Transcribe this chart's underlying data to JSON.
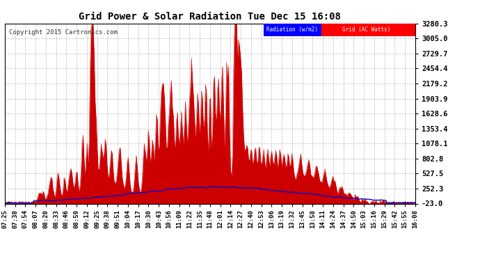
{
  "title": "Grid Power & Solar Radiation Tue Dec 15 16:08",
  "copyright": "Copyright 2015 Cartronics.com",
  "bg_color": "#ffffff",
  "plot_bg_color": "#ffffff",
  "grid_color": "#bbbbbb",
  "radiation_color": "#0000cc",
  "grid_power_color": "#cc0000",
  "fill_color": "#cc0000",
  "yticks": [
    -23.0,
    252.3,
    527.5,
    802.8,
    1078.1,
    1353.4,
    1628.6,
    1903.9,
    2179.2,
    2454.4,
    2729.7,
    3005.0,
    3280.3
  ],
  "ylim": [
    -23.0,
    3280.3
  ],
  "x_labels": [
    "07:25",
    "07:38",
    "07:54",
    "08:07",
    "08:20",
    "08:33",
    "08:46",
    "08:59",
    "09:12",
    "09:25",
    "09:38",
    "09:51",
    "10:04",
    "10:17",
    "10:30",
    "10:43",
    "10:56",
    "11:09",
    "11:22",
    "11:35",
    "11:48",
    "12:01",
    "12:14",
    "12:27",
    "12:40",
    "12:53",
    "13:06",
    "13:19",
    "13:32",
    "13:45",
    "13:58",
    "14:11",
    "14:24",
    "14:37",
    "14:50",
    "15:03",
    "15:16",
    "15:29",
    "15:42",
    "15:55",
    "16:08"
  ],
  "n_points": 410,
  "legend_radiation_label": "Radiation (w/m2)",
  "legend_grid_label": "Grid (AC Watts)"
}
